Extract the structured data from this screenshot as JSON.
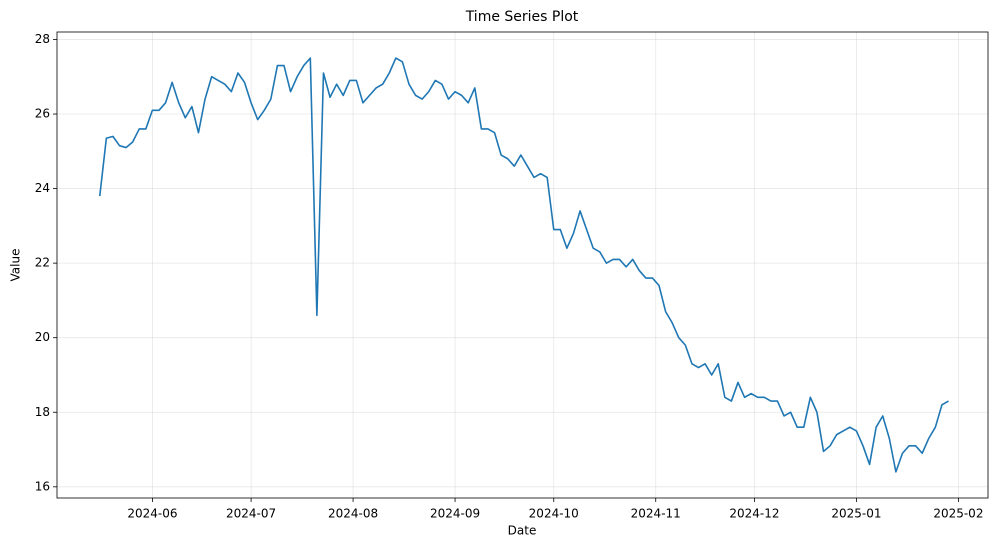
{
  "chart_data": {
    "type": "line",
    "title": "Time Series Plot",
    "x_label": "Date",
    "y_label": "Value",
    "x": [
      19859,
      19861,
      19863,
      19865,
      19867,
      19869,
      19871,
      19873,
      19875,
      19877,
      19879,
      19881,
      19883,
      19885,
      19887,
      19889,
      19891,
      19893,
      19895,
      19897,
      19899,
      19901,
      19903,
      19905,
      19907,
      19909,
      19911,
      19913,
      19915,
      19917,
      19919,
      19921,
      19923,
      19925,
      19927,
      19929,
      19931,
      19933,
      19935,
      19937,
      19939,
      19941,
      19943,
      19945,
      19947,
      19949,
      19951,
      19953,
      19955,
      19957,
      19959,
      19961,
      19963,
      19965,
      19967,
      19969,
      19971,
      19973,
      19975,
      19977,
      19979,
      19981,
      19983,
      19985,
      19987,
      19989,
      19991,
      19993,
      19995,
      19997,
      19999,
      20001,
      20003,
      20005,
      20007,
      20009,
      20011,
      20013,
      20015,
      20017,
      20019,
      20021,
      20023,
      20025,
      20027,
      20029,
      20031,
      20033,
      20035,
      20037,
      20039,
      20041,
      20043,
      20045,
      20047,
      20049,
      20051,
      20053,
      20055,
      20057,
      20059,
      20061,
      20063,
      20065,
      20067,
      20069,
      20071,
      20073,
      20075,
      20077,
      20079,
      20081,
      20083,
      20085,
      20087,
      20089,
      20091,
      20093,
      20095,
      20097,
      20099,
      20101,
      20103,
      20105,
      20107,
      20109,
      20111,
      20113,
      20115,
      20117
    ],
    "series": [
      {
        "name": "Value",
        "color": "#1f77b4",
        "values": [
          23.8,
          25.35,
          25.4,
          25.15,
          25.1,
          25.25,
          25.6,
          25.6,
          26.1,
          26.1,
          26.3,
          26.85,
          26.3,
          25.9,
          26.2,
          25.5,
          26.4,
          27.0,
          26.9,
          26.8,
          26.6,
          27.1,
          26.85,
          26.3,
          25.85,
          26.1,
          26.4,
          27.3,
          27.3,
          26.6,
          27.0,
          27.3,
          27.5,
          20.6,
          27.1,
          26.45,
          26.8,
          26.5,
          26.9,
          26.9,
          26.3,
          26.5,
          26.7,
          26.8,
          27.1,
          27.5,
          27.4,
          26.8,
          26.5,
          26.4,
          26.6,
          26.9,
          26.8,
          26.4,
          26.6,
          26.5,
          26.3,
          26.7,
          25.6,
          25.6,
          25.5,
          24.9,
          24.8,
          24.6,
          24.9,
          24.6,
          24.3,
          24.4,
          24.3,
          22.9,
          22.9,
          22.4,
          22.8,
          23.4,
          22.9,
          22.4,
          22.3,
          22.0,
          22.1,
          22.1,
          21.9,
          22.1,
          21.8,
          21.6,
          21.6,
          21.4,
          20.7,
          20.4,
          20.0,
          19.8,
          19.3,
          19.2,
          19.3,
          19.0,
          19.3,
          18.4,
          18.3,
          18.8,
          18.4,
          18.5,
          18.4,
          18.4,
          18.3,
          18.3,
          17.9,
          18.0,
          17.6,
          17.6,
          18.4,
          18.0,
          16.95,
          17.1,
          17.4,
          17.5,
          17.6,
          17.5,
          17.1,
          16.6,
          17.6,
          17.9,
          17.3,
          16.4,
          16.9,
          17.1,
          17.1,
          16.9,
          17.3,
          17.6,
          18.2,
          18.3
        ]
      }
    ],
    "xlim": [
      19846,
      20129
    ],
    "xticks": [
      {
        "value": 19875,
        "label": "2024-06"
      },
      {
        "value": 19905,
        "label": "2024-07"
      },
      {
        "value": 19936,
        "label": "2024-08"
      },
      {
        "value": 19967,
        "label": "2024-09"
      },
      {
        "value": 19997,
        "label": "2024-10"
      },
      {
        "value": 20028,
        "label": "2024-11"
      },
      {
        "value": 20058,
        "label": "2024-12"
      },
      {
        "value": 20089,
        "label": "2025-01"
      },
      {
        "value": 20120,
        "label": "2025-02"
      }
    ],
    "ylim": [
      15.7,
      28.2
    ],
    "yticks": [
      16,
      18,
      20,
      22,
      24,
      26,
      28
    ],
    "grid": true
  }
}
